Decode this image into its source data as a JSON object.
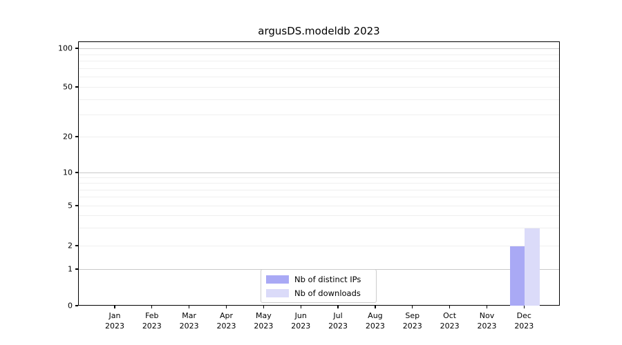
{
  "title": "argusDS.modeldb 2023",
  "chart_data": {
    "type": "bar",
    "title": "argusDS.modeldb 2023",
    "categories": [
      "Jan 2023",
      "Feb 2023",
      "Mar 2023",
      "Apr 2023",
      "May 2023",
      "Jun 2023",
      "Jul 2023",
      "Aug 2023",
      "Sep 2023",
      "Oct 2023",
      "Nov 2023",
      "Dec 2023"
    ],
    "series": [
      {
        "name": "Nb of distinct IPs",
        "color": "#a9a9f5",
        "values": [
          0,
          0,
          0,
          0,
          0,
          0,
          0,
          0,
          0,
          0,
          0,
          2
        ]
      },
      {
        "name": "Nb of downloads",
        "color": "#dbdbf9",
        "values": [
          0,
          0,
          0,
          0,
          0,
          0,
          0,
          0,
          0,
          0,
          0,
          3
        ]
      }
    ],
    "xlabel": "",
    "ylabel": "",
    "y_scale": "symlog",
    "ylim": [
      0,
      100
    ],
    "y_tick_labels": [
      "0",
      "1",
      "2",
      "5",
      "10",
      "20",
      "50",
      "100"
    ],
    "y_tick_anchors": [
      [
        0,
        1.0
      ],
      [
        1,
        0.8616
      ],
      [
        2,
        0.7728
      ],
      [
        5,
        0.6214
      ],
      [
        10,
        0.4961
      ],
      [
        20,
        0.3603
      ],
      [
        50,
        0.1723
      ],
      [
        100,
        0.0261
      ]
    ],
    "y_major_ticks": [
      1,
      10,
      100
    ],
    "y_minor_gridlines": [
      3,
      4,
      6,
      7,
      8,
      9,
      30,
      40,
      60,
      70,
      80,
      90
    ],
    "grid": "horizontal, major and minor",
    "legend_position": "lower center"
  },
  "legend": {
    "items": [
      {
        "label": "Nb of distinct IPs",
        "color": "#a9a9f5"
      },
      {
        "label": "Nb of downloads",
        "color": "#dbdbf9"
      }
    ]
  }
}
